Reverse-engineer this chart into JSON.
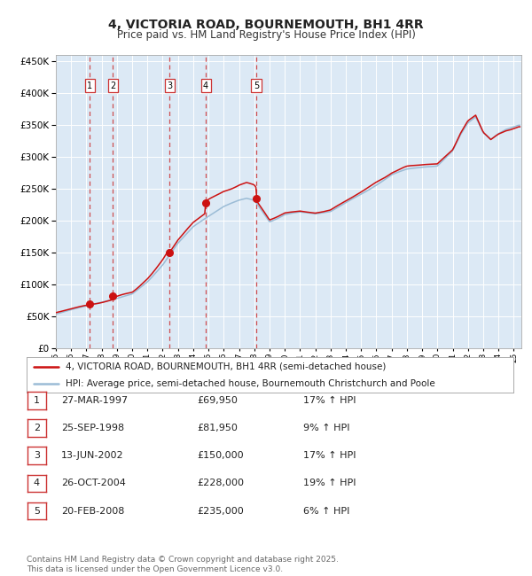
{
  "title": "4, VICTORIA ROAD, BOURNEMOUTH, BH1 4RR",
  "subtitle": "Price paid vs. HM Land Registry's House Price Index (HPI)",
  "title_fontsize": 10,
  "subtitle_fontsize": 8.5,
  "background_color": "#ffffff",
  "plot_bg_color": "#dce9f5",
  "ylim": [
    0,
    460000
  ],
  "yticks": [
    0,
    50000,
    100000,
    150000,
    200000,
    250000,
    300000,
    350000,
    400000,
    450000
  ],
  "legend_line1": "4, VICTORIA ROAD, BOURNEMOUTH, BH1 4RR (semi-detached house)",
  "legend_line2": "HPI: Average price, semi-detached house, Bournemouth Christchurch and Poole",
  "hpi_color": "#9bbcd6",
  "price_color": "#cc1111",
  "sale_marker_color": "#cc1111",
  "dashed_line_color": "#cc3333",
  "grid_color": "#ffffff",
  "transactions": [
    {
      "num": 1,
      "date_str": "27-MAR-1997",
      "year": 1997.23,
      "price": 69950,
      "pct": "17%",
      "dir": "↑"
    },
    {
      "num": 2,
      "date_str": "25-SEP-1998",
      "year": 1998.73,
      "price": 81950,
      "pct": "9%",
      "dir": "↑"
    },
    {
      "num": 3,
      "date_str": "13-JUN-2002",
      "year": 2002.45,
      "price": 150000,
      "pct": "17%",
      "dir": "↑"
    },
    {
      "num": 4,
      "date_str": "26-OCT-2004",
      "year": 2004.82,
      "price": 228000,
      "pct": "19%",
      "dir": "↑"
    },
    {
      "num": 5,
      "date_str": "20-FEB-2008",
      "year": 2008.13,
      "price": 235000,
      "pct": "6%",
      "dir": "↑"
    }
  ],
  "footer_line1": "Contains HM Land Registry data © Crown copyright and database right 2025.",
  "footer_line2": "This data is licensed under the Open Government Licence v3.0.",
  "footer_fontsize": 6.5
}
